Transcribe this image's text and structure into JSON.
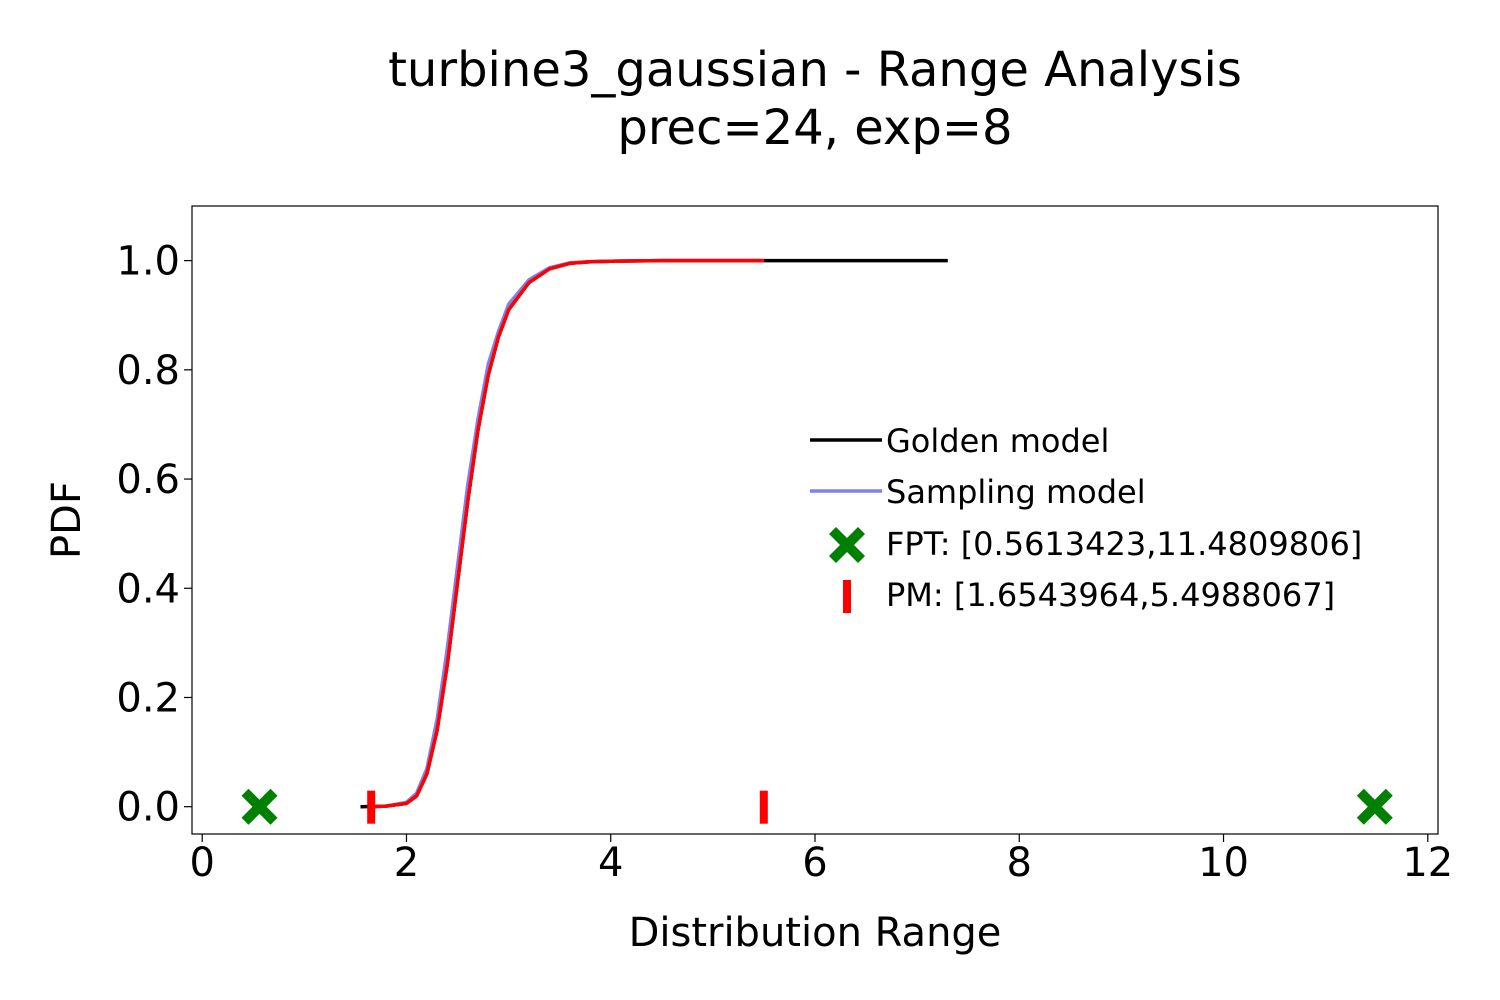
{
  "chart_data": {
    "type": "line",
    "title": "turbine3_gaussian - Range Analysis",
    "subtitle": "prec=24, exp=8",
    "xlabel": "Distribution Range",
    "ylabel": "PDF",
    "xlim": [
      -0.1,
      12.1
    ],
    "ylim": [
      -0.05,
      1.1
    ],
    "xticks": [
      0,
      2,
      4,
      6,
      8,
      10,
      12
    ],
    "xtick_labels": [
      "0",
      "2",
      "4",
      "6",
      "8",
      "10",
      "12"
    ],
    "yticks": [
      0.0,
      0.2,
      0.4,
      0.6,
      0.8,
      1.0
    ],
    "ytick_labels": [
      "0.0",
      "0.2",
      "0.4",
      "0.6",
      "0.8",
      "1.0"
    ],
    "grid": false,
    "legend_position": "center-right",
    "series": [
      {
        "name": "Golden model",
        "color": "#000000",
        "x": [
          1.55,
          1.8,
          2.0,
          2.1,
          2.2,
          2.3,
          2.4,
          2.5,
          2.6,
          2.7,
          2.8,
          2.9,
          3.0,
          3.2,
          3.4,
          3.6,
          3.8,
          4.0,
          4.5,
          5.0,
          5.5,
          6.0,
          7.3
        ],
        "y": [
          0.0,
          0.001,
          0.006,
          0.02,
          0.06,
          0.14,
          0.26,
          0.41,
          0.56,
          0.69,
          0.79,
          0.86,
          0.91,
          0.96,
          0.985,
          0.995,
          0.998,
          0.999,
          1.0,
          1.0,
          1.0,
          1.0,
          1.0
        ]
      },
      {
        "name": "Sampling model",
        "color": "#8080ee",
        "x": [
          1.65,
          1.8,
          2.0,
          2.1,
          2.2,
          2.3,
          2.4,
          2.5,
          2.6,
          2.7,
          2.8,
          2.9,
          3.0,
          3.2,
          3.4,
          3.6,
          3.8,
          4.0,
          4.5,
          5.0,
          5.5
        ],
        "y": [
          0.0,
          0.001,
          0.008,
          0.025,
          0.07,
          0.16,
          0.29,
          0.44,
          0.59,
          0.71,
          0.81,
          0.87,
          0.92,
          0.965,
          0.987,
          0.996,
          0.998,
          0.999,
          1.0,
          1.0,
          1.0
        ]
      },
      {
        "name": "",
        "color": "#ff0000",
        "x": [
          1.65,
          1.8,
          2.0,
          2.1,
          2.2,
          2.3,
          2.4,
          2.5,
          2.6,
          2.7,
          2.8,
          2.9,
          3.0,
          3.2,
          3.4,
          3.6,
          3.8,
          4.0,
          4.5,
          5.0,
          5.5
        ],
        "y": [
          0.0,
          0.001,
          0.006,
          0.02,
          0.06,
          0.14,
          0.26,
          0.41,
          0.56,
          0.69,
          0.79,
          0.86,
          0.91,
          0.96,
          0.985,
          0.995,
          0.998,
          0.999,
          1.0,
          1.0,
          1.0
        ]
      }
    ],
    "markers": {
      "fpt": {
        "label": "FPT: [0.5613423,11.4809806]",
        "color": "#008000",
        "x": [
          0.5613423,
          11.4809806
        ],
        "y": [
          0.0,
          0.0
        ]
      },
      "pm": {
        "label": "PM: [1.6543964,5.4988067]",
        "color": "#ff0000",
        "x": [
          1.6543964,
          5.4988067
        ],
        "y": [
          0.0,
          0.0
        ]
      }
    }
  }
}
